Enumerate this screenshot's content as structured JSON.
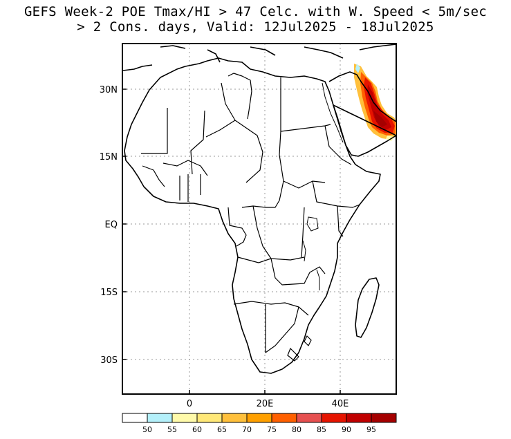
{
  "title": {
    "line1": "GEFS Week-2 POE Tmax/HI > 47 Celc. with W. Speed < 5m/sec",
    "line2": "> 2 Cons. days, Valid: 12Jul2025 - 18Jul2025"
  },
  "axes": {
    "lat_labels": [
      "30N",
      "15N",
      "EQ",
      "15S",
      "30S"
    ],
    "lon_labels": [
      "0",
      "20E",
      "40E"
    ]
  },
  "colorbar": {
    "labels": [
      "50",
      "55",
      "60",
      "65",
      "70",
      "75",
      "80",
      "85",
      "90",
      "95"
    ],
    "colors": [
      "#ffffff",
      "#b4f0fa",
      "#fffaaa",
      "#ffe878",
      "#ffc03c",
      "#ffa000",
      "#ff6000",
      "#e65050",
      "#e61400",
      "#c00000",
      "#a50000"
    ]
  }
}
